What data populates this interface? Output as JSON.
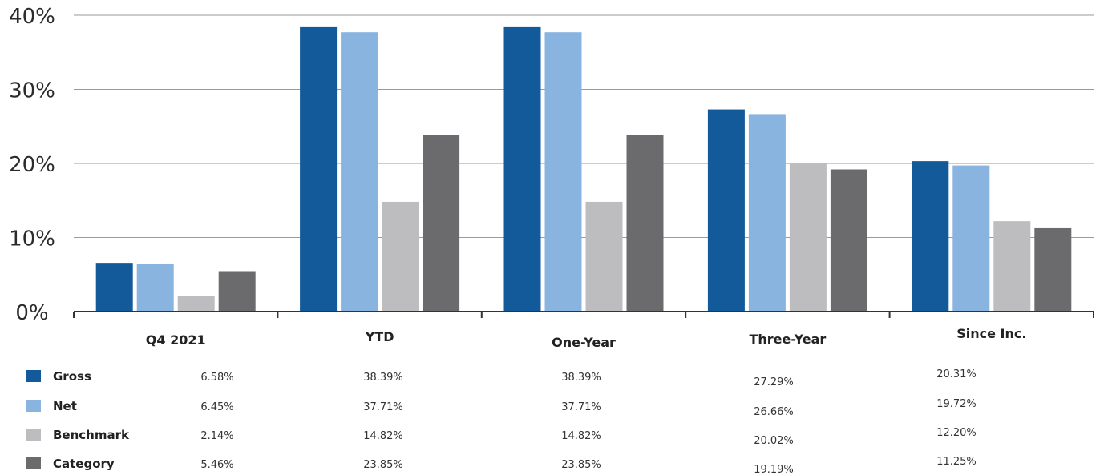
{
  "chart_data": {
    "type": "bar",
    "title": "",
    "xlabel": "",
    "ylabel": "",
    "ylim": [
      0,
      40
    ],
    "yticks": [
      "0%",
      "10%",
      "20%",
      "30%",
      "40%"
    ],
    "categories": [
      "Q4 2021",
      "YTD",
      "One-Year",
      "Three-Year",
      "Since Inc."
    ],
    "grid": true,
    "legend_placement": "bottom-left table",
    "series": [
      {
        "name": "Gross",
        "color": "#125a99",
        "values": [
          6.58,
          38.39,
          38.39,
          27.29,
          20.31
        ],
        "labels": [
          "6.58%",
          "38.39%",
          "38.39%",
          "27.29%",
          "20.31%"
        ]
      },
      {
        "name": "Net",
        "color": "#8ab4e0",
        "values": [
          6.45,
          37.71,
          37.71,
          26.66,
          19.72
        ],
        "labels": [
          "6.45%",
          "37.71%",
          "37.71%",
          "26.66%",
          "19.72%"
        ]
      },
      {
        "name": "Benchmark",
        "color": "#bdbdc0",
        "values": [
          2.14,
          14.82,
          14.82,
          20.02,
          12.2
        ],
        "labels": [
          "2.14%",
          "14.82%",
          "14.82%",
          "20.02%",
          "12.20%"
        ]
      },
      {
        "name": "Category",
        "color": "#6b6b6e",
        "values": [
          5.46,
          23.85,
          23.85,
          19.19,
          11.25
        ],
        "labels": [
          "5.46%",
          "23.85%",
          "23.85%",
          "19.19%",
          "11.25%"
        ]
      }
    ]
  }
}
